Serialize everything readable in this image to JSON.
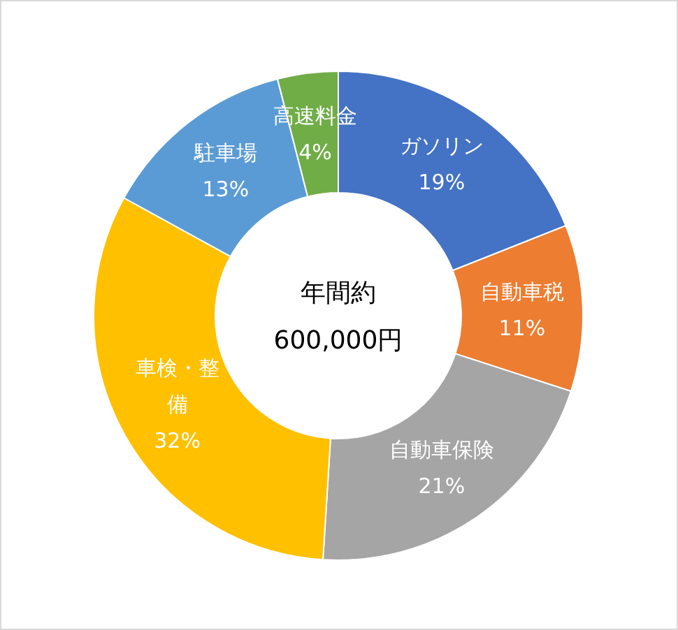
{
  "chart_data": {
    "type": "donut",
    "categories": [
      "ガソリン",
      "自動車税",
      "自動車保険",
      "車検・整備",
      "駐車場",
      "高速料金"
    ],
    "values": [
      19,
      11,
      21,
      32,
      13,
      4
    ],
    "colors": [
      "#4472c4",
      "#ed7d31",
      "#a5a5a5",
      "#ffc000",
      "#5b9bd5",
      "#70ad47"
    ],
    "value_labels": [
      "19%",
      "11%",
      "21%",
      "32%",
      "13%",
      "4%"
    ],
    "annotations": [
      "年間約",
      "600,000円"
    ]
  }
}
